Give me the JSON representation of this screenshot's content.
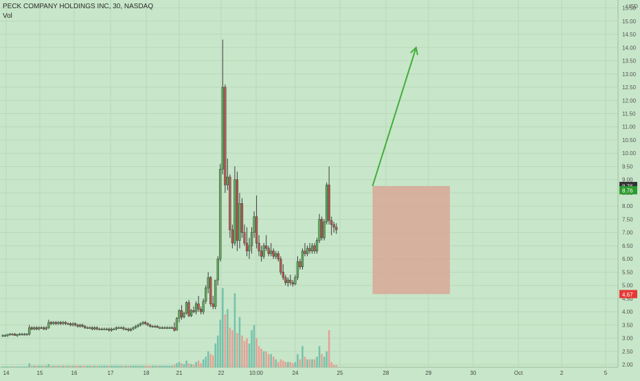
{
  "colors": {
    "background": "#c8e6c9",
    "grid": "#b9d8ba",
    "up": "#5fae5a",
    "down": "#b85a50",
    "wick": "#3a3a3a",
    "vol_up": "#6cbfa8",
    "vol_down": "#e59a90",
    "arrow": "#3fae3a",
    "box_fill": "#d8a797",
    "price_tag_dark": "#333333",
    "price_tag_green": "#2e9b2e",
    "price_tag_red": "#e53935"
  },
  "chart_data": {
    "type": "candlestick",
    "title": "PECK COMPANY HOLDINGS INC, 30, NASDAQ",
    "indicator": "Vol",
    "currency": "USD",
    "ylim": [
      1.9,
      15.8
    ],
    "y_ticks": [
      "2.00",
      "2.50",
      "3.00",
      "3.50",
      "4.00",
      "4.50",
      "5.00",
      "5.50",
      "6.00",
      "6.50",
      "7.00",
      "7.50",
      "8.00",
      "8.50",
      "9.00",
      "9.50",
      "10.00",
      "10.50",
      "11.00",
      "11.50",
      "12.00",
      "12.50",
      "13.00",
      "13.50",
      "14.00",
      "14.50",
      "15.00",
      "15.50"
    ],
    "x_ticks": [
      "14",
      "15",
      "16",
      "17",
      "18",
      "21",
      "22",
      "10:00",
      "24",
      "25",
      "28",
      "29",
      "30",
      "Oct",
      "2",
      "5"
    ],
    "price_tags": [
      {
        "label": "8.76",
        "value": 8.76,
        "style": "dark"
      },
      {
        "label": "8.76",
        "value": 8.6,
        "style": "green"
      },
      {
        "label": "4.67",
        "value": 4.67,
        "style": "red"
      }
    ],
    "candles": [
      [
        3.1,
        3.15,
        3.05,
        3.1,
        0.3
      ],
      [
        3.1,
        3.15,
        3.05,
        3.1,
        0.3
      ],
      [
        3.1,
        3.15,
        3.05,
        3.15,
        0.3
      ],
      [
        3.15,
        3.2,
        3.1,
        3.15,
        0.3
      ],
      [
        3.15,
        3.2,
        3.1,
        3.15,
        0.3
      ],
      [
        3.15,
        3.2,
        3.1,
        3.1,
        0.3
      ],
      [
        3.1,
        3.15,
        3.05,
        3.15,
        0.3
      ],
      [
        3.15,
        3.2,
        3.1,
        3.15,
        0.3
      ],
      [
        3.15,
        3.2,
        3.1,
        3.15,
        0.3
      ],
      [
        3.15,
        3.2,
        3.1,
        3.15,
        0.3
      ],
      [
        3.15,
        3.2,
        3.1,
        3.15,
        0.3
      ],
      [
        3.15,
        3.5,
        3.1,
        3.4,
        1.5
      ],
      [
        3.4,
        3.45,
        3.3,
        3.35,
        0.6
      ],
      [
        3.35,
        3.45,
        3.3,
        3.4,
        0.6
      ],
      [
        3.4,
        3.45,
        3.3,
        3.35,
        0.6
      ],
      [
        3.35,
        3.45,
        3.3,
        3.4,
        0.6
      ],
      [
        3.4,
        3.45,
        3.35,
        3.4,
        0.6
      ],
      [
        3.4,
        3.45,
        3.3,
        3.35,
        0.6
      ],
      [
        3.35,
        3.45,
        3.3,
        3.4,
        0.6
      ],
      [
        3.4,
        3.7,
        3.35,
        3.6,
        1.2
      ],
      [
        3.6,
        3.65,
        3.5,
        3.55,
        0.6
      ],
      [
        3.55,
        3.65,
        3.5,
        3.6,
        0.6
      ],
      [
        3.6,
        3.65,
        3.5,
        3.55,
        0.6
      ],
      [
        3.55,
        3.65,
        3.5,
        3.6,
        0.6
      ],
      [
        3.6,
        3.65,
        3.5,
        3.55,
        0.6
      ],
      [
        3.55,
        3.65,
        3.5,
        3.6,
        0.6
      ],
      [
        3.6,
        3.65,
        3.5,
        3.55,
        0.6
      ],
      [
        3.55,
        3.6,
        3.5,
        3.55,
        0.6
      ],
      [
        3.55,
        3.6,
        3.45,
        3.5,
        0.6
      ],
      [
        3.5,
        3.6,
        3.45,
        3.55,
        0.6
      ],
      [
        3.55,
        3.6,
        3.45,
        3.5,
        0.6
      ],
      [
        3.5,
        3.55,
        3.4,
        3.45,
        0.6
      ],
      [
        3.45,
        3.55,
        3.4,
        3.5,
        0.6
      ],
      [
        3.5,
        3.55,
        3.4,
        3.45,
        0.6
      ],
      [
        3.45,
        3.5,
        3.35,
        3.4,
        0.6
      ],
      [
        3.4,
        3.45,
        3.35,
        3.4,
        0.6
      ],
      [
        3.4,
        3.45,
        3.35,
        3.4,
        0.6
      ],
      [
        3.4,
        3.45,
        3.3,
        3.35,
        0.6
      ],
      [
        3.35,
        3.45,
        3.3,
        3.4,
        0.6
      ],
      [
        3.4,
        3.45,
        3.3,
        3.35,
        0.6
      ],
      [
        3.35,
        3.4,
        3.3,
        3.35,
        0.6
      ],
      [
        3.35,
        3.4,
        3.3,
        3.35,
        0.6
      ],
      [
        3.35,
        3.4,
        3.3,
        3.35,
        0.6
      ],
      [
        3.35,
        3.4,
        3.3,
        3.35,
        0.6
      ],
      [
        3.35,
        3.4,
        3.25,
        3.3,
        0.6
      ],
      [
        3.3,
        3.4,
        3.25,
        3.35,
        0.6
      ],
      [
        3.35,
        3.4,
        3.3,
        3.35,
        0.6
      ],
      [
        3.35,
        3.45,
        3.3,
        3.4,
        0.6
      ],
      [
        3.4,
        3.45,
        3.35,
        3.4,
        0.6
      ],
      [
        3.4,
        3.45,
        3.35,
        3.4,
        0.6
      ],
      [
        3.4,
        3.45,
        3.3,
        3.35,
        0.6
      ],
      [
        3.35,
        3.4,
        3.3,
        3.35,
        0.6
      ],
      [
        3.35,
        3.4,
        3.25,
        3.3,
        0.6
      ],
      [
        3.3,
        3.4,
        3.25,
        3.35,
        0.6
      ],
      [
        3.35,
        3.45,
        3.3,
        3.4,
        0.6
      ],
      [
        3.4,
        3.5,
        3.35,
        3.45,
        0.6
      ],
      [
        3.45,
        3.55,
        3.4,
        3.5,
        0.6
      ],
      [
        3.5,
        3.6,
        3.45,
        3.55,
        0.6
      ],
      [
        3.55,
        3.65,
        3.5,
        3.6,
        0.6
      ],
      [
        3.6,
        3.65,
        3.5,
        3.55,
        0.6
      ],
      [
        3.55,
        3.6,
        3.45,
        3.5,
        0.6
      ],
      [
        3.5,
        3.55,
        3.4,
        3.45,
        0.6
      ],
      [
        3.45,
        3.5,
        3.4,
        3.45,
        0.6
      ],
      [
        3.45,
        3.5,
        3.4,
        3.45,
        0.6
      ],
      [
        3.45,
        3.5,
        3.4,
        3.4,
        0.6
      ],
      [
        3.4,
        3.45,
        3.35,
        3.4,
        0.6
      ],
      [
        3.4,
        3.45,
        3.35,
        3.4,
        0.6
      ],
      [
        3.4,
        3.45,
        3.35,
        3.4,
        0.6
      ],
      [
        3.4,
        3.45,
        3.35,
        3.4,
        0.6
      ],
      [
        3.4,
        3.45,
        3.35,
        3.4,
        0.6
      ],
      [
        3.4,
        3.45,
        3.35,
        3.4,
        0.6
      ],
      [
        3.4,
        3.6,
        3.25,
        3.3,
        1.0
      ],
      [
        3.3,
        3.8,
        3.3,
        3.75,
        1.5
      ],
      [
        3.75,
        4.1,
        3.6,
        4.05,
        2.0
      ],
      [
        4.05,
        4.25,
        3.7,
        3.8,
        1.5
      ],
      [
        3.8,
        4.0,
        3.75,
        3.95,
        1.2
      ],
      [
        3.95,
        4.4,
        3.9,
        4.35,
        2.5
      ],
      [
        4.35,
        4.45,
        3.8,
        3.85,
        1.5
      ],
      [
        3.85,
        4.1,
        3.8,
        4.05,
        1.2
      ],
      [
        4.05,
        4.2,
        3.95,
        4.0,
        1.0
      ],
      [
        4.0,
        4.4,
        3.9,
        4.3,
        2.0
      ],
      [
        4.3,
        4.6,
        4.0,
        4.1,
        2.5
      ],
      [
        4.1,
        4.2,
        3.9,
        4.0,
        1.5
      ],
      [
        4.0,
        4.5,
        3.9,
        4.4,
        3.0
      ],
      [
        4.4,
        5.0,
        4.3,
        4.9,
        4.0
      ],
      [
        4.9,
        5.5,
        4.7,
        5.3,
        6.0
      ],
      [
        5.3,
        5.35,
        4.2,
        4.3,
        5.0
      ],
      [
        4.3,
        4.6,
        4.1,
        4.2,
        4.5
      ],
      [
        4.2,
        5.2,
        4.1,
        5.2,
        9.0
      ],
      [
        5.2,
        6.1,
        5.0,
        6.0,
        12.0
      ],
      [
        6.0,
        9.6,
        5.9,
        9.4,
        18.0
      ],
      [
        9.4,
        14.3,
        9.2,
        12.5,
        30.0
      ],
      [
        12.5,
        12.6,
        8.5,
        8.8,
        20.0
      ],
      [
        8.8,
        9.8,
        8.6,
        9.1,
        22.0
      ],
      [
        9.1,
        9.2,
        6.8,
        7.1,
        15.0
      ],
      [
        7.1,
        7.3,
        6.4,
        6.6,
        14.0
      ],
      [
        6.6,
        9.5,
        6.5,
        9.0,
        28.0
      ],
      [
        9.0,
        9.3,
        6.3,
        6.7,
        13.0
      ],
      [
        6.7,
        8.5,
        6.4,
        8.1,
        19.0
      ],
      [
        8.1,
        8.3,
        6.8,
        7.0,
        12.0
      ],
      [
        7.0,
        7.3,
        6.5,
        6.6,
        10.0
      ],
      [
        6.6,
        7.2,
        6.1,
        6.3,
        11.0
      ],
      [
        6.3,
        6.8,
        6.0,
        6.5,
        9.0
      ],
      [
        6.5,
        7.2,
        6.2,
        7.0,
        14.0
      ],
      [
        7.0,
        7.8,
        6.8,
        7.6,
        16.0
      ],
      [
        7.6,
        8.4,
        6.4,
        6.6,
        11.0
      ],
      [
        6.6,
        6.9,
        6.1,
        6.3,
        8.0
      ],
      [
        6.3,
        6.5,
        5.9,
        6.1,
        7.0
      ],
      [
        6.1,
        6.6,
        6.0,
        6.5,
        6.0
      ],
      [
        6.5,
        6.9,
        6.3,
        6.4,
        6.0
      ],
      [
        6.4,
        6.5,
        6.1,
        6.2,
        5.0
      ],
      [
        6.2,
        6.6,
        6.1,
        6.3,
        5.0
      ],
      [
        6.3,
        6.4,
        6.0,
        6.1,
        4.0
      ],
      [
        6.1,
        6.3,
        6.0,
        6.2,
        3.0
      ],
      [
        6.2,
        6.3,
        5.9,
        6.0,
        2.0
      ],
      [
        6.0,
        6.1,
        5.4,
        5.5,
        3.0
      ],
      [
        5.5,
        5.8,
        5.2,
        5.3,
        2.5
      ],
      [
        5.3,
        5.4,
        5.0,
        5.1,
        2.0
      ],
      [
        5.1,
        5.3,
        4.95,
        5.2,
        2.0
      ],
      [
        5.2,
        5.4,
        5.0,
        5.1,
        2.0
      ],
      [
        5.1,
        5.2,
        4.95,
        5.05,
        1.5
      ],
      [
        5.05,
        5.4,
        5.0,
        5.3,
        2.0
      ],
      [
        5.3,
        6.1,
        5.2,
        5.9,
        5.0
      ],
      [
        5.9,
        6.0,
        5.6,
        5.7,
        3.0
      ],
      [
        5.7,
        6.4,
        5.6,
        6.3,
        8.0
      ],
      [
        6.3,
        6.6,
        6.1,
        6.2,
        4.0
      ],
      [
        6.2,
        6.5,
        6.1,
        6.4,
        3.0
      ],
      [
        6.4,
        6.6,
        6.2,
        6.3,
        3.0
      ],
      [
        6.3,
        6.6,
        6.2,
        6.5,
        3.0
      ],
      [
        6.5,
        6.6,
        6.2,
        6.3,
        3.0
      ],
      [
        6.3,
        6.8,
        6.2,
        6.7,
        4.0
      ],
      [
        6.7,
        7.7,
        6.6,
        7.5,
        8.0
      ],
      [
        7.5,
        7.6,
        6.7,
        6.8,
        5.0
      ],
      [
        6.8,
        7.5,
        6.7,
        7.4,
        4.0
      ],
      [
        7.4,
        8.9,
        7.3,
        8.8,
        6.0
      ],
      [
        8.8,
        9.5,
        7.3,
        7.45,
        14.0
      ],
      [
        7.45,
        7.6,
        6.9,
        7.3,
        2.0
      ],
      [
        7.3,
        7.4,
        7.0,
        7.2,
        1.0
      ],
      [
        7.2,
        7.35,
        6.95,
        7.1,
        0.8
      ]
    ],
    "annotations": [
      {
        "type": "arrow",
        "from": {
          "bar": 153,
          "price": 8.76
        },
        "to": {
          "bar": 171,
          "price": 14.0
        }
      },
      {
        "type": "rect",
        "x1_bar": 153,
        "x2_bar": 185,
        "top": 8.76,
        "bottom": 4.67
      }
    ]
  }
}
